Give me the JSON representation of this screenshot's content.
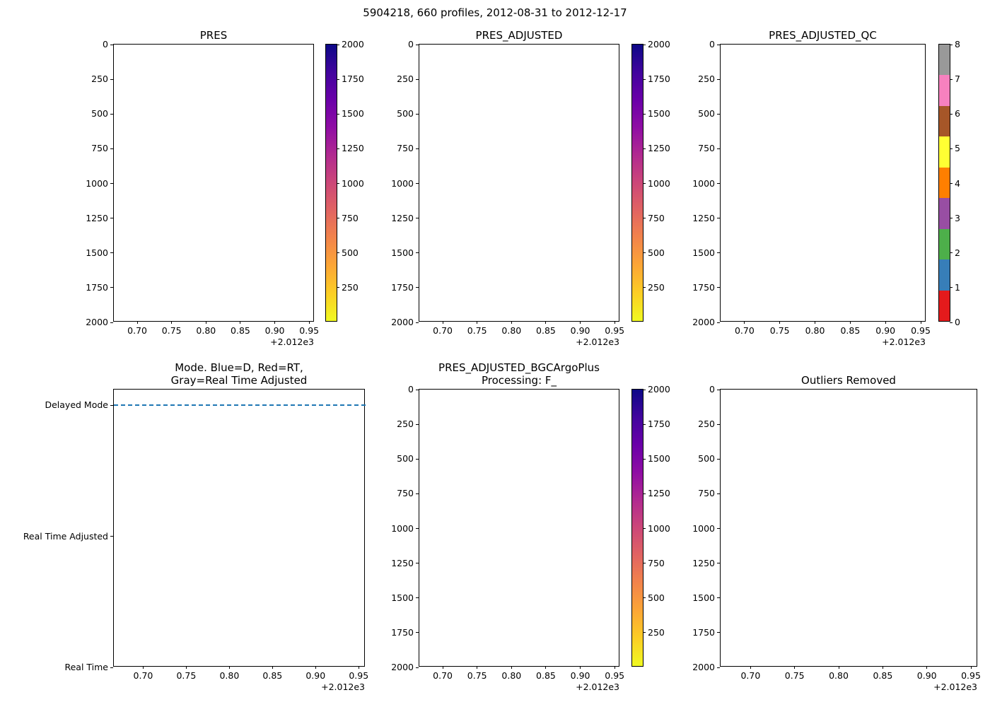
{
  "figure": {
    "suptitle": "5904218, 660 profiles, 2012-08-31 to 2012-12-17",
    "background_color": "#ffffff",
    "text_color": "#000000"
  },
  "colorbars": {
    "plasma": {
      "style": "continuous",
      "vmin": 0,
      "vmax": 2000,
      "tick_values": [
        2000,
        1750,
        1500,
        1250,
        1000,
        750,
        500,
        250
      ],
      "tick_labels": [
        "2000",
        "1750",
        "1500",
        "1250",
        "1000",
        "750",
        "500",
        "250"
      ],
      "stops_top_to_bottom": [
        "#0d0887",
        "#41049d",
        "#6a00a8",
        "#8f0da4",
        "#b12a90",
        "#cc4778",
        "#e16462",
        "#f2844b",
        "#fca636",
        "#fcce25",
        "#f0f921"
      ]
    },
    "qc": {
      "style": "discrete",
      "vmin": 0,
      "vmax": 8,
      "tick_values": [
        8,
        7,
        6,
        5,
        4,
        3,
        2,
        1,
        0
      ],
      "tick_labels": [
        "8",
        "7",
        "6",
        "5",
        "4",
        "3",
        "2",
        "1",
        "0"
      ],
      "segments_top_to_bottom": [
        "#999999",
        "#f781bf",
        "#a65628",
        "#ffff33",
        "#ff7f00",
        "#984ea3",
        "#4daf4a",
        "#377eb8",
        "#e41a1c"
      ]
    }
  },
  "chart_data": [
    {
      "id": "pres",
      "type": "scatter",
      "title_lines": [
        "PRES"
      ],
      "xlim": [
        2012.666,
        2012.958
      ],
      "x_tick_values": [
        2012.7,
        2012.75,
        2012.8,
        2012.85,
        2012.9,
        2012.95
      ],
      "x_tick_labels": [
        "0.70",
        "0.75",
        "0.80",
        "0.85",
        "0.90",
        "0.95"
      ],
      "x_offset_text": "+2.012e3",
      "ylim": [
        0,
        2000
      ],
      "y_tick_values": [
        0,
        250,
        500,
        750,
        1000,
        1250,
        1500,
        1750,
        2000
      ],
      "y_tick_labels": [
        "0",
        "250",
        "500",
        "750",
        "1000",
        "1250",
        "1500",
        "1750",
        "2000"
      ],
      "points": [],
      "colorbar": "plasma"
    },
    {
      "id": "pres_adjusted",
      "type": "scatter",
      "title_lines": [
        "PRES_ADJUSTED"
      ],
      "xlim": [
        2012.666,
        2012.958
      ],
      "x_tick_values": [
        2012.7,
        2012.75,
        2012.8,
        2012.85,
        2012.9,
        2012.95
      ],
      "x_tick_labels": [
        "0.70",
        "0.75",
        "0.80",
        "0.85",
        "0.90",
        "0.95"
      ],
      "x_offset_text": "+2.012e3",
      "ylim": [
        0,
        2000
      ],
      "y_tick_values": [
        0,
        250,
        500,
        750,
        1000,
        1250,
        1500,
        1750,
        2000
      ],
      "y_tick_labels": [
        "0",
        "250",
        "500",
        "750",
        "1000",
        "1250",
        "1500",
        "1750",
        "2000"
      ],
      "points": [],
      "colorbar": "plasma"
    },
    {
      "id": "pres_adjusted_qc",
      "type": "scatter",
      "title_lines": [
        "PRES_ADJUSTED_QC"
      ],
      "xlim": [
        2012.666,
        2012.958
      ],
      "x_tick_values": [
        2012.7,
        2012.75,
        2012.8,
        2012.85,
        2012.9,
        2012.95
      ],
      "x_tick_labels": [
        "0.70",
        "0.75",
        "0.80",
        "0.85",
        "0.90",
        "0.95"
      ],
      "x_offset_text": "+2.012e3",
      "ylim": [
        0,
        2000
      ],
      "y_tick_values": [
        0,
        250,
        500,
        750,
        1000,
        1250,
        1500,
        1750,
        2000
      ],
      "y_tick_labels": [
        "0",
        "250",
        "500",
        "750",
        "1000",
        "1250",
        "1500",
        "1750",
        "2000"
      ],
      "points": [],
      "colorbar": "qc"
    },
    {
      "id": "mode",
      "type": "line",
      "title_lines": [
        "Mode. Blue=D, Red=RT,",
        "Gray=Real Time Adjusted"
      ],
      "xlim": [
        2012.666,
        2012.958
      ],
      "x_tick_values": [
        2012.7,
        2012.75,
        2012.8,
        2012.85,
        2012.9,
        2012.95
      ],
      "x_tick_labels": [
        "0.70",
        "0.75",
        "0.80",
        "0.85",
        "0.90",
        "0.95"
      ],
      "x_offset_text": "+2.012e3",
      "ylim": [
        3.12,
        1.0
      ],
      "y_tick_values": [
        3,
        2,
        1
      ],
      "y_tick_labels": [
        "Delayed Mode",
        "Real Time Adjusted",
        "Real Time"
      ],
      "series": [
        {
          "name": "Delayed Mode",
          "color": "#1f77b4",
          "linestyle": "dashed",
          "y_value": 3,
          "x_span": [
            2012.666,
            2012.958
          ]
        }
      ],
      "colorbar": null
    },
    {
      "id": "pres_adjusted_bgc",
      "type": "scatter",
      "title_lines": [
        "PRES_ADJUSTED_BGCArgoPlus",
        "Processing: F_"
      ],
      "xlim": [
        2012.666,
        2012.958
      ],
      "x_tick_values": [
        2012.7,
        2012.75,
        2012.8,
        2012.85,
        2012.9,
        2012.95
      ],
      "x_tick_labels": [
        "0.70",
        "0.75",
        "0.80",
        "0.85",
        "0.90",
        "0.95"
      ],
      "x_offset_text": "+2.012e3",
      "ylim": [
        0,
        2000
      ],
      "y_tick_values": [
        0,
        250,
        500,
        750,
        1000,
        1250,
        1500,
        1750,
        2000
      ],
      "y_tick_labels": [
        "0",
        "250",
        "500",
        "750",
        "1000",
        "1250",
        "1500",
        "1750",
        "2000"
      ],
      "points": [],
      "colorbar": "plasma"
    },
    {
      "id": "outliers_removed",
      "type": "scatter",
      "title_lines": [
        "Outliers Removed"
      ],
      "xlim": [
        2012.666,
        2012.958
      ],
      "x_tick_values": [
        2012.7,
        2012.75,
        2012.8,
        2012.85,
        2012.9,
        2012.95
      ],
      "x_tick_labels": [
        "0.70",
        "0.75",
        "0.80",
        "0.85",
        "0.90",
        "0.95"
      ],
      "x_offset_text": "+2.012e3",
      "ylim": [
        0,
        2000
      ],
      "y_tick_values": [
        0,
        250,
        500,
        750,
        1000,
        1250,
        1500,
        1750,
        2000
      ],
      "y_tick_labels": [
        "0",
        "250",
        "500",
        "750",
        "1000",
        "1250",
        "1500",
        "1750",
        "2000"
      ],
      "points": [],
      "colorbar": null
    }
  ]
}
